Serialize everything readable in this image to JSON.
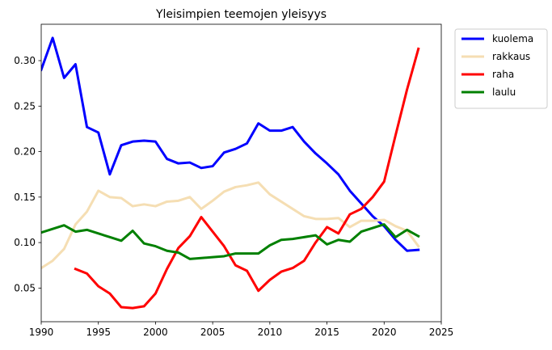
{
  "chart_data": {
    "type": "line",
    "title": "Yleisimpien teemojen yleisyys",
    "xlabel": "",
    "ylabel": "",
    "xlim": [
      1990,
      2025
    ],
    "ylim": [
      0.013,
      0.34
    ],
    "xticks": [
      1990,
      1995,
      2000,
      2005,
      2010,
      2015,
      2020,
      2025
    ],
    "yticks": [
      0.05,
      0.1,
      0.15,
      0.2,
      0.25,
      0.3
    ],
    "ytick_labels": [
      "0.05",
      "0.10",
      "0.15",
      "0.20",
      "0.25",
      "0.30"
    ],
    "grid": false,
    "legend_position": "outside-top-right",
    "series": [
      {
        "name": "kuolema",
        "color": "#0000ff",
        "x": [
          1990,
          1991,
          1992,
          1993,
          1994,
          1995,
          1996,
          1997,
          1998,
          1999,
          2000,
          2001,
          2002,
          2003,
          2004,
          2005,
          2006,
          2007,
          2008,
          2009,
          2010,
          2011,
          2012,
          2013,
          2014,
          2015,
          2016,
          2017,
          2018,
          2019,
          2020,
          2021,
          2022,
          2023
        ],
        "values": [
          0.29,
          0.325,
          0.281,
          0.296,
          0.227,
          0.221,
          0.175,
          0.207,
          0.211,
          0.212,
          0.211,
          0.192,
          0.187,
          0.188,
          0.182,
          0.184,
          0.199,
          0.203,
          0.209,
          0.231,
          0.223,
          0.223,
          0.227,
          0.211,
          0.198,
          0.187,
          0.175,
          0.157,
          0.143,
          0.129,
          0.118,
          0.103,
          0.091,
          0.092
        ]
      },
      {
        "name": "rakkaus",
        "color": "#f5deb3",
        "x": [
          1990,
          1991,
          1992,
          1993,
          1994,
          1995,
          1996,
          1997,
          1998,
          1999,
          2000,
          2001,
          2002,
          2003,
          2004,
          2005,
          2006,
          2007,
          2008,
          2009,
          2010,
          2011,
          2012,
          2013,
          2014,
          2015,
          2016,
          2017,
          2018,
          2019,
          2020,
          2021,
          2022,
          2023
        ],
        "values": [
          0.072,
          0.08,
          0.093,
          0.12,
          0.134,
          0.157,
          0.15,
          0.149,
          0.14,
          0.142,
          0.14,
          0.145,
          0.146,
          0.15,
          0.137,
          0.146,
          0.156,
          0.161,
          0.163,
          0.166,
          0.153,
          0.145,
          0.137,
          0.129,
          0.126,
          0.126,
          0.127,
          0.117,
          0.124,
          0.124,
          0.125,
          0.118,
          0.113,
          0.096
        ]
      },
      {
        "name": "raha",
        "color": "#ff0000",
        "x": [
          1993,
          1994,
          1995,
          1996,
          1997,
          1998,
          1999,
          2000,
          2001,
          2002,
          2003,
          2004,
          2005,
          2006,
          2007,
          2008,
          2009,
          2010,
          2011,
          2012,
          2013,
          2014,
          2015,
          2016,
          2017,
          2018,
          2019,
          2020,
          2021,
          2022,
          2023
        ],
        "values": [
          0.071,
          0.066,
          0.052,
          0.044,
          0.029,
          0.028,
          0.03,
          0.044,
          0.071,
          0.094,
          0.107,
          0.128,
          0.112,
          0.096,
          0.075,
          0.069,
          0.047,
          0.059,
          0.068,
          0.072,
          0.08,
          0.1,
          0.117,
          0.11,
          0.131,
          0.137,
          0.15,
          0.167,
          0.218,
          0.268,
          0.313
        ]
      },
      {
        "name": "laulu",
        "color": "#008000",
        "x": [
          1990,
          1991,
          1992,
          1993,
          1994,
          1995,
          1996,
          1997,
          1998,
          1999,
          2000,
          2001,
          2002,
          2003,
          2004,
          2005,
          2006,
          2007,
          2008,
          2009,
          2010,
          2011,
          2012,
          2013,
          2014,
          2015,
          2016,
          2017,
          2018,
          2019,
          2020,
          2021,
          2022,
          2023
        ],
        "values": [
          0.111,
          0.115,
          0.119,
          0.112,
          0.114,
          0.11,
          0.106,
          0.102,
          0.113,
          0.099,
          0.096,
          0.091,
          0.089,
          0.082,
          0.083,
          0.084,
          0.085,
          0.088,
          0.088,
          0.088,
          0.097,
          0.103,
          0.104,
          0.106,
          0.108,
          0.098,
          0.103,
          0.101,
          0.112,
          0.116,
          0.12,
          0.106,
          0.114,
          0.107
        ]
      }
    ]
  }
}
